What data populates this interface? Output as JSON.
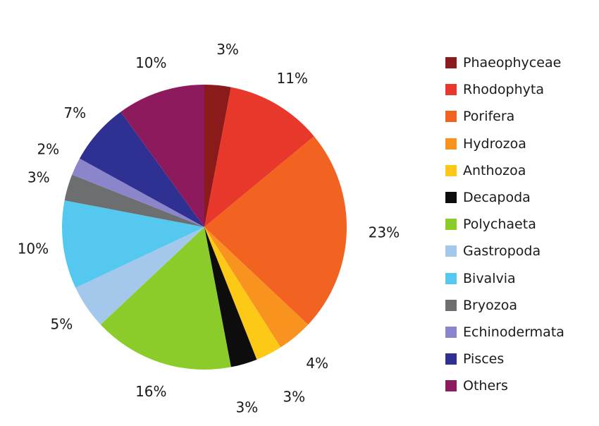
{
  "chart_data": {
    "type": "pie",
    "title": "",
    "legend_position": "right",
    "slices": [
      {
        "name": "Phaeophyceae",
        "value": 3,
        "label": "3%",
        "color": "#8b1a1a"
      },
      {
        "name": "Rhodophyta",
        "value": 11,
        "label": "11%",
        "color": "#e8382b"
      },
      {
        "name": "Porifera",
        "value": 23,
        "label": "23%",
        "color": "#f26322"
      },
      {
        "name": "Hydrozoa",
        "value": 4,
        "label": "4%",
        "color": "#f7931e"
      },
      {
        "name": "Anthozoa",
        "value": 3,
        "label": "3%",
        "color": "#fcc917"
      },
      {
        "name": "Decapoda",
        "value": 3,
        "label": "3%",
        "color": "#0d0d0d"
      },
      {
        "name": "Polychaeta",
        "value": 16,
        "label": "16%",
        "color": "#8ccc2a"
      },
      {
        "name": "Gastropoda",
        "value": 5,
        "label": "5%",
        "color": "#a3c8ec"
      },
      {
        "name": "Bivalvia",
        "value": 10,
        "label": "10%",
        "color": "#55c8f0"
      },
      {
        "name": "Bryozoa",
        "value": 3,
        "label": "3%",
        "color": "#6d6e70"
      },
      {
        "name": "Echinodermata",
        "value": 2,
        "label": "2%",
        "color": "#8b85cc"
      },
      {
        "name": "Pisces",
        "value": 7,
        "label": "7%",
        "color": "#2e3192"
      },
      {
        "name": "Others",
        "value": 10,
        "label": "10%",
        "color": "#8e1a5e"
      }
    ]
  }
}
